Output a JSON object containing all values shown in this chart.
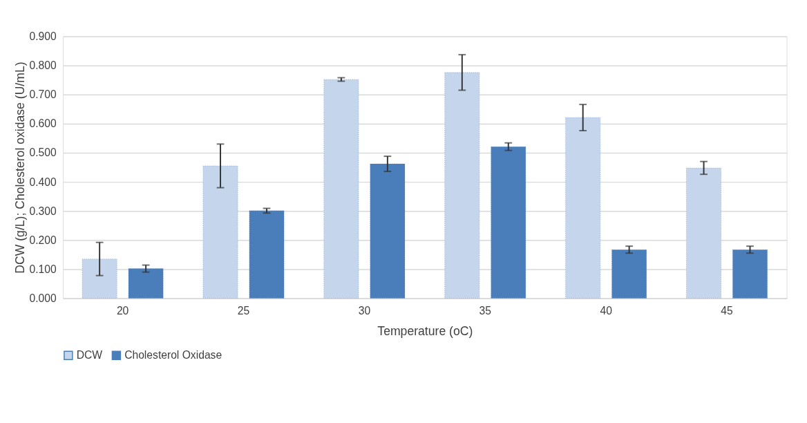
{
  "chart_data": {
    "type": "bar",
    "xlabel": "Temperature (oC)",
    "ylabel": "DCW (g/L); Cholesterol oxidase (U/mL)",
    "categories": [
      "20",
      "25",
      "30",
      "35",
      "40",
      "45"
    ],
    "series": [
      {
        "name": "DCW",
        "color": "#c5d5ec",
        "values": [
          0.135,
          0.455,
          0.752,
          0.776,
          0.621,
          0.448
        ],
        "errors": [
          0.057,
          0.075,
          0.006,
          0.061,
          0.045,
          0.022
        ]
      },
      {
        "name": "Cholesterol Oxidase",
        "color": "#4a7ebb",
        "values": [
          0.102,
          0.301,
          0.462,
          0.521,
          0.167,
          0.167
        ],
        "errors": [
          0.012,
          0.008,
          0.026,
          0.013,
          0.012,
          0.012
        ]
      }
    ],
    "ylim": [
      0,
      0.9
    ],
    "yticks": [
      {
        "value": 0,
        "label": "0.000"
      },
      {
        "value": 0.1,
        "label": "0.100"
      },
      {
        "value": 0.2,
        "label": "0.200"
      },
      {
        "value": 0.3,
        "label": "0.300"
      },
      {
        "value": 0.4,
        "label": "0.400"
      },
      {
        "value": 0.5,
        "label": "0.500"
      },
      {
        "value": 0.6,
        "label": "0.600"
      },
      {
        "value": 0.7,
        "label": "0.700"
      },
      {
        "value": 0.8,
        "label": "0.800"
      },
      {
        "value": 0.9,
        "label": "0.900"
      }
    ],
    "grid": "y",
    "legend": "bottom"
  }
}
